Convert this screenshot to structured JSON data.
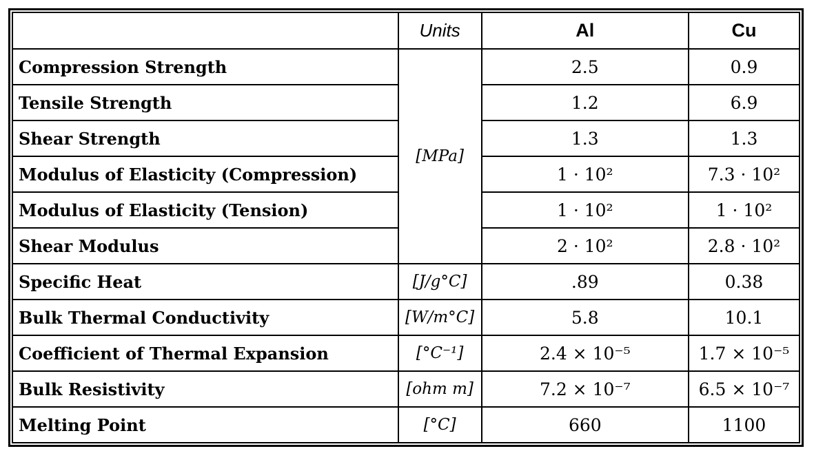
{
  "colors": {
    "border": "#000000",
    "background": "#ffffff",
    "text": "#000000"
  },
  "table": {
    "header": {
      "property": "",
      "units": "Units",
      "al": "Al",
      "cu": "Cu"
    },
    "merged_units": {
      "label": "[MPa]",
      "rowspan": 6
    },
    "rows": [
      {
        "property": "Compression Strength",
        "al": "2.5",
        "cu": "0.9"
      },
      {
        "property": "Tensile Strength",
        "al": "1.2",
        "cu": "6.9"
      },
      {
        "property": "Shear Strength",
        "al": "1.3",
        "cu": "1.3"
      },
      {
        "property": "Modulus of Elasticity (Compression)",
        "al": "1 · 10²",
        "cu": "7.3 · 10²"
      },
      {
        "property": "Modulus of Elasticity (Tension)",
        "al": "1 · 10²",
        "cu": "1 · 10²"
      },
      {
        "property": "Shear Modulus",
        "al": "2 · 10²",
        "cu": "2.8 · 10²"
      },
      {
        "property": "Specific Heat",
        "units": "[J/g°C]",
        "al": ".89",
        "cu": "0.38"
      },
      {
        "property": "Bulk Thermal Conductivity",
        "units": "[W/m°C]",
        "al": "5.8",
        "cu": "10.1"
      },
      {
        "property": "Coefficient of Thermal Expansion",
        "units": "[°C⁻¹]",
        "al": "2.4 × 10⁻⁵",
        "cu": "1.7 × 10⁻⁵"
      },
      {
        "property": "Bulk Resistivity",
        "units": "[ohm m]",
        "al": "7.2 × 10⁻⁷",
        "cu": "6.5 × 10⁻⁷"
      },
      {
        "property": "Melting Point",
        "units": "[°C]",
        "al": "660",
        "cu": "1100"
      }
    ]
  }
}
